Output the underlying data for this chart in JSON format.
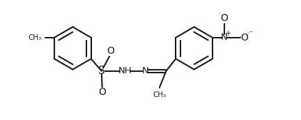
{
  "bg_color": "#ffffff",
  "line_color": "#1a1a1a",
  "lw": 1.5,
  "fig_w": 4.32,
  "fig_h": 1.72,
  "dpi": 100,
  "xlim": [
    -0.5,
    10.5
  ],
  "ylim": [
    -0.2,
    4.8
  ]
}
